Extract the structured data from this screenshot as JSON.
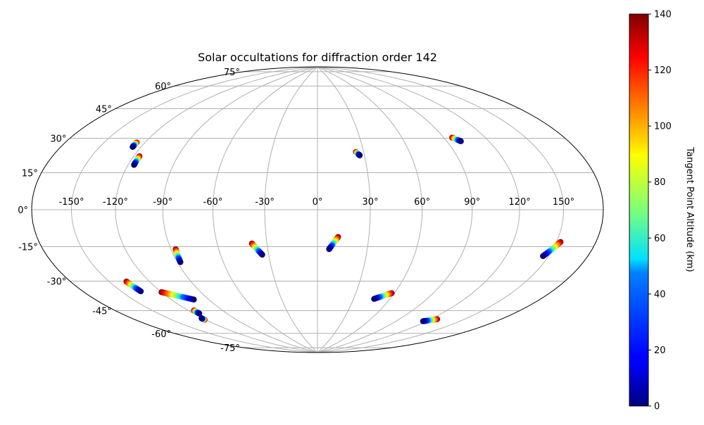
{
  "chart_data": {
    "type": "scatter",
    "projection": "hammer",
    "title": "Solar occultations for diffraction order 142",
    "x_tick_labels": [
      "-150°",
      "-120°",
      "-90°",
      "-60°",
      "-30°",
      "0°",
      "30°",
      "60°",
      "90°",
      "120°",
      "150°"
    ],
    "x_tick_values": [
      -150,
      -120,
      -90,
      -60,
      -30,
      0,
      30,
      60,
      90,
      120,
      150
    ],
    "y_tick_labels": [
      "-75°",
      "-60°",
      "-45°",
      "-30°",
      "-15°",
      "0°",
      "15°",
      "30°",
      "45°",
      "60°",
      "75°"
    ],
    "y_tick_values": [
      -75,
      -60,
      -45,
      -30,
      -15,
      0,
      15,
      30,
      45,
      60,
      75
    ],
    "grid": true,
    "colorbar": {
      "label": "Tangent Point Altitude (km)",
      "min": 0,
      "max": 140,
      "tick_values": [
        0,
        20,
        40,
        60,
        80,
        100,
        120,
        140
      ],
      "tick_labels": [
        "0",
        "20",
        "40",
        "60",
        "80",
        "100",
        "120",
        "140"
      ],
      "colormap": "jet"
    },
    "tracks": [
      {
        "start": [
          -126,
          33.5
        ],
        "end": [
          -126,
          31.2
        ]
      },
      {
        "start": [
          -116,
          27.0
        ],
        "end": [
          -116,
          22.5
        ]
      },
      {
        "start": [
          25,
          33.0
        ],
        "end": [
          27,
          31.0
        ]
      },
      {
        "start": [
          96,
          38.5
        ],
        "end": [
          100,
          36.2
        ]
      },
      {
        "start": [
          -87,
          -21.0
        ],
        "end": [
          -88,
          -28.0
        ]
      },
      {
        "start": [
          -39,
          -19.0
        ],
        "end": [
          -34,
          -25.5
        ]
      },
      {
        "start": [
          12,
          -15.5
        ],
        "end": [
          7,
          -22.5
        ]
      },
      {
        "start": [
          -137,
          -35.0
        ],
        "end": [
          -135,
          -40.5
        ]
      },
      {
        "start": [
          -120,
          -42.5
        ],
        "end": [
          -102,
          -48.5
        ]
      },
      {
        "start": [
          -115,
          -54.0
        ],
        "end": [
          -115,
          -56.0
        ]
      },
      {
        "start": [
          -121,
          -59.5
        ],
        "end": [
          -121,
          -58.5
        ]
      },
      {
        "start": [
          58,
          -47.5
        ],
        "end": [
          47,
          -51.5
        ]
      },
      {
        "start": [
          153,
          -14.5
        ],
        "end": [
          146,
          -21.5
        ]
      },
      {
        "start": [
          126,
          -58.5
        ],
        "end": [
          117,
          -61.0
        ]
      }
    ]
  }
}
